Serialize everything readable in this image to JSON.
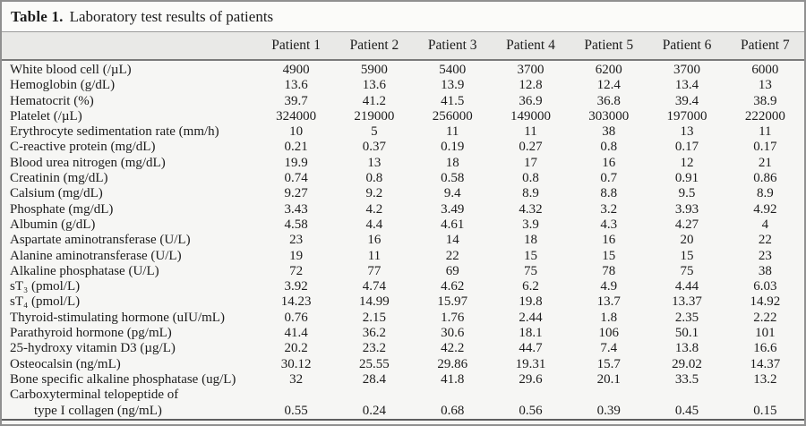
{
  "title": {
    "label": "Table 1.",
    "text": "Laboratory test results of patients"
  },
  "table": {
    "corner_label": "",
    "columns": [
      "Patient 1",
      "Patient 2",
      "Patient 3",
      "Patient 4",
      "Patient 5",
      "Patient 6",
      "Patient 7"
    ],
    "rows": [
      {
        "label": "White blood cell (/µL)",
        "values": [
          "4900",
          "5900",
          "5400",
          "3700",
          "6200",
          "3700",
          "6000"
        ]
      },
      {
        "label": "Hemoglobin (g/dL)",
        "values": [
          "13.6",
          "13.6",
          "13.9",
          "12.8",
          "12.4",
          "13.4",
          "13"
        ]
      },
      {
        "label": "Hematocrit (%)",
        "values": [
          "39.7",
          "41.2",
          "41.5",
          "36.9",
          "36.8",
          "39.4",
          "38.9"
        ]
      },
      {
        "label": "Platelet (/µL)",
        "values": [
          "324000",
          "219000",
          "256000",
          "149000",
          "303000",
          "197000",
          "222000"
        ]
      },
      {
        "label": "Erythrocyte sedimentation rate (mm/h)",
        "values": [
          "10",
          "5",
          "11",
          "11",
          "38",
          "13",
          "11"
        ]
      },
      {
        "label": "C-reactive protein (mg/dL)",
        "values": [
          "0.21",
          "0.37",
          "0.19",
          "0.27",
          "0.8",
          "0.17",
          "0.17"
        ]
      },
      {
        "label": "Blood urea nitrogen (mg/dL)",
        "values": [
          "19.9",
          "13",
          "18",
          "17",
          "16",
          "12",
          "21"
        ]
      },
      {
        "label": "Creatinin (mg/dL)",
        "values": [
          "0.74",
          "0.8",
          "0.58",
          "0.8",
          "0.7",
          "0.91",
          "0.86"
        ]
      },
      {
        "label": "Calsium (mg/dL)",
        "values": [
          "9.27",
          "9.2",
          "9.4",
          "8.9",
          "8.8",
          "9.5",
          "8.9"
        ]
      },
      {
        "label": "Phosphate (mg/dL)",
        "values": [
          "3.43",
          "4.2",
          "3.49",
          "4.32",
          "3.2",
          "3.93",
          "4.92"
        ]
      },
      {
        "label": "Albumin (g/dL)",
        "values": [
          "4.58",
          "4.4",
          "4.61",
          "3.9",
          "4.3",
          "4.27",
          "4"
        ]
      },
      {
        "label": "Aspartate aminotransferase (U/L)",
        "values": [
          "23",
          "16",
          "14",
          "18",
          "16",
          "20",
          "22"
        ]
      },
      {
        "label": "Alanine aminotransferase (U/L)",
        "values": [
          "19",
          "11",
          "22",
          "15",
          "15",
          "15",
          "23"
        ]
      },
      {
        "label": "Alkaline phosphatase (U/L)",
        "values": [
          "72",
          "77",
          "69",
          "75",
          "78",
          "75",
          "38"
        ]
      },
      {
        "label": "sT₃ (pmol/L)",
        "values": [
          "3.92",
          "4.74",
          "4.62",
          "6.2",
          "4.9",
          "4.44",
          "6.03"
        ]
      },
      {
        "label": "sT₄ (pmol/L)",
        "values": [
          "14.23",
          "14.99",
          "15.97",
          "19.8",
          "13.7",
          "13.37",
          "14.92"
        ]
      },
      {
        "label": "Thyroid-stimulating hormone (uIU/mL)",
        "values": [
          "0.76",
          "2.15",
          "1.76",
          "2.44",
          "1.8",
          "2.35",
          "2.22"
        ]
      },
      {
        "label": "Parathyroid hormone (pg/mL)",
        "values": [
          "41.4",
          "36.2",
          "30.6",
          "18.1",
          "106",
          "50.1",
          "101"
        ]
      },
      {
        "label": "25-hydroxy vitamin D3 (µg/L)",
        "values": [
          "20.2",
          "23.2",
          "42.2",
          "44.7",
          "7.4",
          "13.8",
          "16.6"
        ]
      },
      {
        "label": "Osteocalsin (ng/mL)",
        "values": [
          "30.12",
          "25.55",
          "29.86",
          "19.31",
          "15.7",
          "29.02",
          "14.37"
        ]
      },
      {
        "label": "Bone specific alkaline phosphatase (ug/L)",
        "values": [
          "32",
          "28.4",
          "41.8",
          "29.6",
          "20.1",
          "33.5",
          "13.2"
        ]
      },
      {
        "label": "Carboxyterminal telopeptide of",
        "label2": "type I collagen (ng/mL)",
        "values": [
          "0.55",
          "0.24",
          "0.68",
          "0.56",
          "0.39",
          "0.45",
          "0.15"
        ]
      }
    ]
  }
}
